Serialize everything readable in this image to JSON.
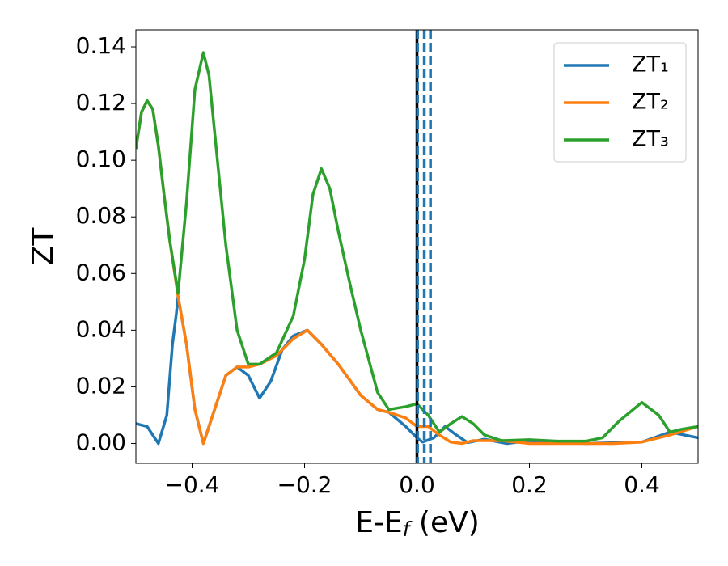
{
  "chart_data": {
    "type": "line",
    "ylabel": "ZT",
    "xlabel_parts": {
      "main": "E-E",
      "sub": "f",
      "rest": " (eV)"
    },
    "xlim": [
      -0.5,
      0.5
    ],
    "xticks": [
      {
        "value": -0.4,
        "label": "−0.4"
      },
      {
        "value": -0.2,
        "label": "−0.2"
      },
      {
        "value": 0,
        "label": "0.0"
      },
      {
        "value": 0.2,
        "label": "0.2"
      },
      {
        "value": 0.4,
        "label": "0.4"
      }
    ],
    "ylim": [
      -0.007,
      0.146
    ],
    "yticks": [
      {
        "value": 0,
        "label": "0.00"
      },
      {
        "value": 0.02,
        "label": "0.02"
      },
      {
        "value": 0.04,
        "label": "0.04"
      },
      {
        "value": 0.06,
        "label": "0.06"
      },
      {
        "value": 0.08,
        "label": "0.08"
      },
      {
        "value": 0.1,
        "label": "0.10"
      },
      {
        "value": 0.12,
        "label": "0.12"
      },
      {
        "value": 0.14,
        "label": "0.14"
      }
    ],
    "legend": "upper right",
    "series": [
      {
        "name": "ZT₁",
        "color": "#1f77b4",
        "x": [
          -0.5,
          -0.48,
          -0.46,
          -0.445,
          -0.435,
          -0.428,
          -0.425,
          -0.41,
          -0.395,
          -0.38,
          -0.36,
          -0.34,
          -0.32,
          -0.3,
          -0.28,
          -0.26,
          -0.24,
          -0.22,
          -0.195,
          -0.17,
          -0.14,
          -0.1,
          -0.07,
          -0.05,
          -0.02,
          0.0,
          0.01,
          0.03,
          0.05,
          0.07,
          0.09,
          0.12,
          0.16,
          0.2,
          0.3,
          0.4,
          0.45,
          0.5
        ],
        "values": [
          0.007,
          0.006,
          0.0,
          0.01,
          0.035,
          0.046,
          0.052,
          0.035,
          0.012,
          0.0,
          0.012,
          0.024,
          0.027,
          0.024,
          0.016,
          0.022,
          0.033,
          0.038,
          0.04,
          0.035,
          0.028,
          0.017,
          0.012,
          0.011,
          0.006,
          0.002,
          0.0005,
          0.002,
          0.006,
          0.003,
          0.0003,
          0.0015,
          0.0,
          0.001,
          0.0,
          0.0005,
          0.004,
          0.002
        ]
      },
      {
        "name": "ZT₂",
        "color": "#ff7f0e",
        "x": [
          -0.5,
          -0.49,
          -0.48,
          -0.47,
          -0.46,
          -0.45,
          -0.44,
          -0.425,
          -0.41,
          -0.395,
          -0.38,
          -0.36,
          -0.34,
          -0.32,
          -0.3,
          -0.28,
          -0.25,
          -0.22,
          -0.195,
          -0.17,
          -0.14,
          -0.1,
          -0.07,
          -0.05,
          -0.02,
          0.0,
          0.02,
          0.04,
          0.06,
          0.08,
          0.1,
          0.15,
          0.2,
          0.3,
          0.35,
          0.4,
          0.45,
          0.5
        ],
        "values": [
          0.104,
          0.117,
          0.121,
          0.118,
          0.105,
          0.088,
          0.072,
          0.052,
          0.035,
          0.012,
          0.0,
          0.012,
          0.024,
          0.027,
          0.027,
          0.028,
          0.031,
          0.037,
          0.04,
          0.035,
          0.028,
          0.017,
          0.012,
          0.011,
          0.009,
          0.006,
          0.006,
          0.003,
          0.0005,
          0.0,
          0.001,
          0.001,
          0.0,
          0.0,
          0.0,
          0.0005,
          0.003,
          0.006
        ]
      },
      {
        "name": "ZT₃",
        "color": "#2ca02c",
        "x": [
          -0.5,
          -0.49,
          -0.48,
          -0.47,
          -0.46,
          -0.45,
          -0.44,
          -0.425,
          -0.41,
          -0.395,
          -0.38,
          -0.37,
          -0.36,
          -0.34,
          -0.32,
          -0.3,
          -0.28,
          -0.25,
          -0.22,
          -0.2,
          -0.185,
          -0.17,
          -0.155,
          -0.14,
          -0.12,
          -0.1,
          -0.07,
          -0.05,
          -0.02,
          0.0,
          0.02,
          0.04,
          0.06,
          0.08,
          0.1,
          0.12,
          0.15,
          0.2,
          0.25,
          0.3,
          0.33,
          0.36,
          0.4,
          0.43,
          0.45,
          0.47,
          0.5
        ],
        "values": [
          0.104,
          0.117,
          0.121,
          0.118,
          0.105,
          0.088,
          0.072,
          0.053,
          0.085,
          0.125,
          0.138,
          0.13,
          0.11,
          0.07,
          0.04,
          0.028,
          0.028,
          0.032,
          0.045,
          0.065,
          0.088,
          0.097,
          0.09,
          0.075,
          0.057,
          0.04,
          0.018,
          0.012,
          0.013,
          0.014,
          0.01,
          0.004,
          0.007,
          0.0095,
          0.007,
          0.003,
          0.001,
          0.0013,
          0.0008,
          0.0008,
          0.002,
          0.008,
          0.0145,
          0.01,
          0.004,
          0.005,
          0.006
        ]
      }
    ],
    "vlines": [
      {
        "x": 0,
        "color": "#000000",
        "style": "solid"
      },
      {
        "x": 0.001,
        "color": "#1f77b4",
        "style": "dashed"
      },
      {
        "x": 0.013,
        "color": "#1f77b4",
        "style": "dashed"
      },
      {
        "x": 0.024,
        "color": "#1f77b4",
        "style": "dashed"
      }
    ]
  }
}
